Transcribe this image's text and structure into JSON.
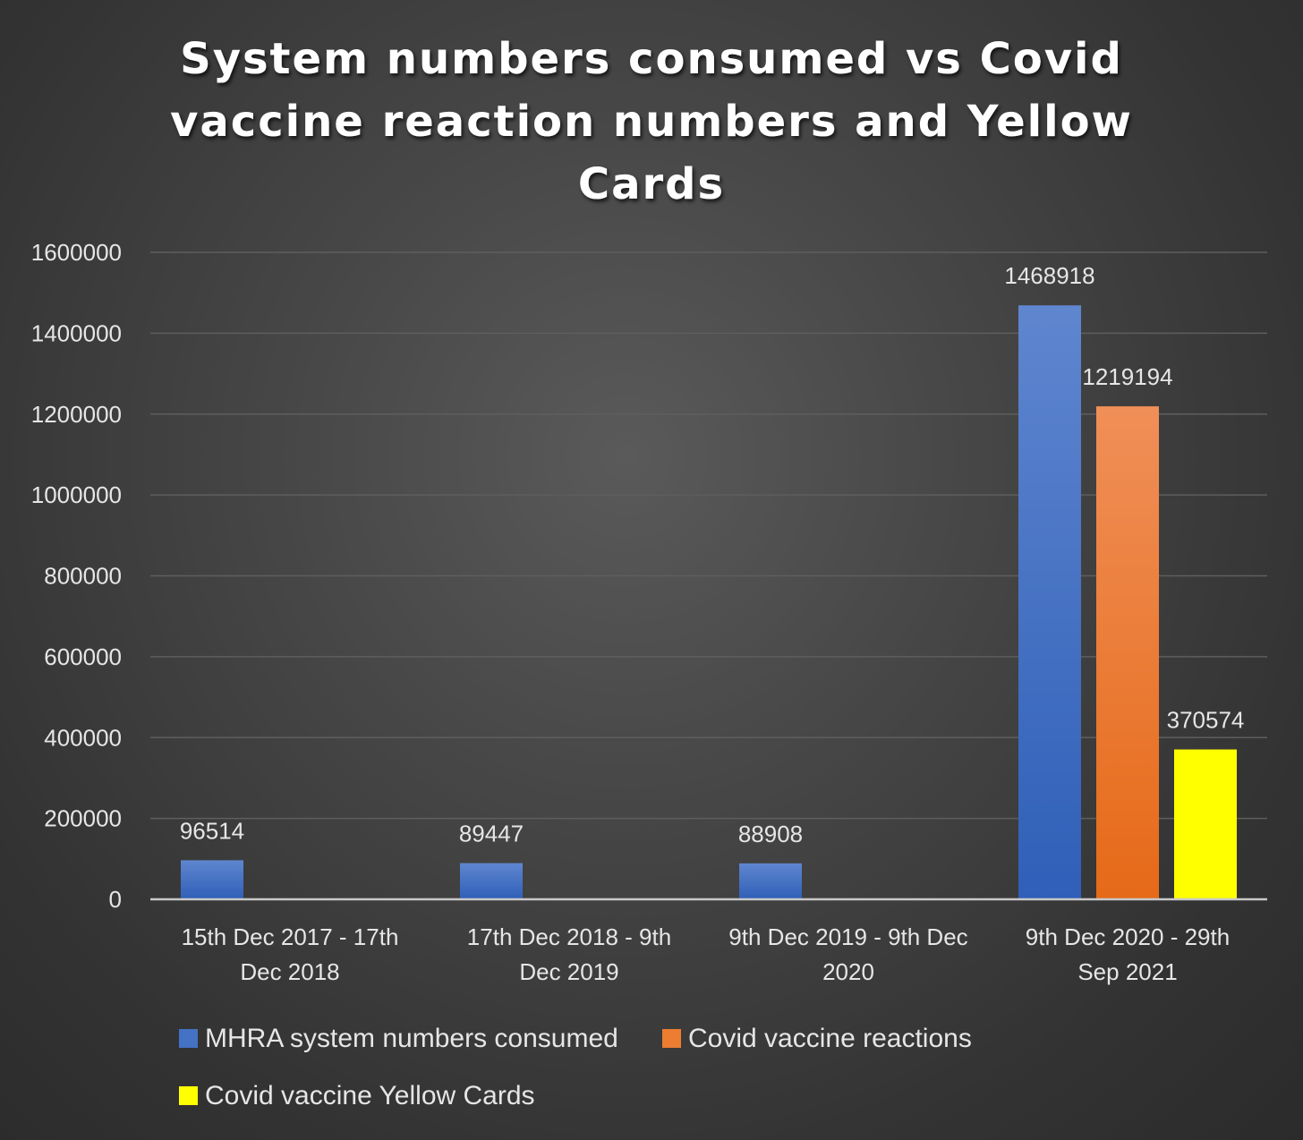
{
  "chart_data": {
    "type": "bar",
    "title_lines": [
      "System numbers consumed vs Covid",
      "vaccine reaction numbers and Yellow",
      "Cards"
    ],
    "categories": [
      [
        "15th Dec 2017 - 17th",
        "Dec 2018"
      ],
      [
        "17th Dec 2018 - 9th",
        "Dec 2019"
      ],
      [
        "9th Dec 2019 - 9th Dec",
        "2020"
      ],
      [
        "9th Dec 2020 - 29th",
        "Sep 2021"
      ]
    ],
    "series": [
      {
        "name": "MHRA system numbers consumed",
        "color": "#4472c4",
        "values": [
          96514,
          89447,
          88908,
          1468918
        ]
      },
      {
        "name": "Covid vaccine reactions",
        "color": "#ed7d31",
        "values": [
          null,
          null,
          null,
          1219194
        ]
      },
      {
        "name": "Covid vaccine Yellow Cards",
        "color": "#ffff00",
        "values": [
          null,
          null,
          null,
          370574
        ]
      }
    ],
    "ylim": [
      0,
      1600000
    ],
    "yticks": [
      0,
      200000,
      400000,
      600000,
      800000,
      1000000,
      1200000,
      1400000,
      1600000
    ],
    "grid": true,
    "legend_position": "bottom"
  }
}
